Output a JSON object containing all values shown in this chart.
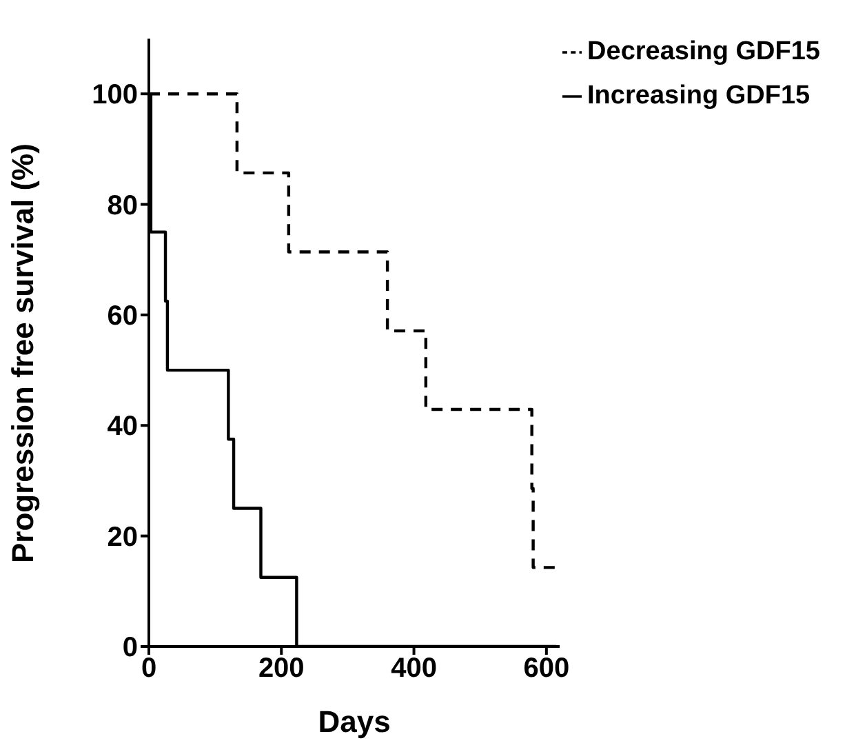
{
  "chart_data": {
    "type": "step",
    "xlabel": "Days",
    "ylabel": "Progression free survival (%)",
    "xlim": [
      0,
      620
    ],
    "xticks": [
      0,
      200,
      400,
      600
    ],
    "ylim": [
      0,
      110
    ],
    "yticks": [
      0,
      20,
      40,
      60,
      80,
      100
    ],
    "grid": false,
    "legend": "top right",
    "marker": "none",
    "series": [
      {
        "name": "Increasing GDF15",
        "color": "#000000",
        "line_style": "solid",
        "x": [
          0,
          3,
          25,
          28,
          120,
          128,
          169,
          223,
          615
        ],
        "values": [
          100,
          75,
          62.5,
          50,
          37.5,
          25,
          12.5,
          0,
          0
        ]
      },
      {
        "name": "Decreasing GDF15",
        "color": "#000000",
        "line_style": "dashed",
        "x": [
          0,
          133,
          211,
          360,
          418,
          578,
          580,
          614
        ],
        "values": [
          100,
          85.7,
          71.4,
          57.1,
          42.9,
          28.6,
          14.3,
          14.3
        ]
      }
    ]
  }
}
